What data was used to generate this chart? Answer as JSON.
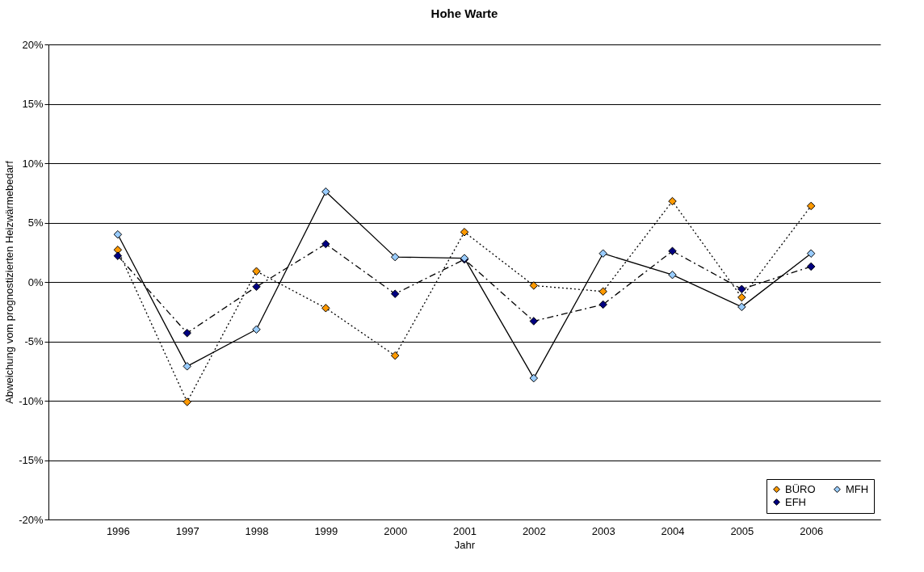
{
  "chart_data": {
    "type": "line",
    "title": "Hohe Warte",
    "xlabel": "Jahr",
    "ylabel": "Abweichung vom prognostizierten Heizwärmebedarf",
    "categories": [
      "1996",
      "1997",
      "1998",
      "1999",
      "2000",
      "2001",
      "2002",
      "2003",
      "2004",
      "2005",
      "2006"
    ],
    "series": [
      {
        "name": "BÜRO",
        "color": "#ff9900",
        "line_style": "dotted",
        "values": [
          2.7,
          -10.1,
          0.9,
          -2.2,
          -6.2,
          4.2,
          -0.3,
          -0.8,
          6.8,
          -1.3,
          6.4
        ]
      },
      {
        "name": "EFH",
        "color": "#000080",
        "line_style": "dashed",
        "values": [
          2.2,
          -4.3,
          -0.4,
          3.2,
          -1.0,
          1.9,
          -3.3,
          -1.9,
          2.6,
          -0.6,
          1.3
        ]
      },
      {
        "name": "MFH",
        "color": "#99ccff",
        "line_style": "solid",
        "values": [
          4.0,
          -7.1,
          -4.0,
          7.6,
          2.1,
          2.0,
          -8.1,
          2.4,
          0.6,
          -2.1,
          2.4
        ]
      }
    ],
    "ylim": [
      -20,
      20
    ],
    "yticks": [
      {
        "value": -20,
        "label": "-20%"
      },
      {
        "value": -15,
        "label": "-15%"
      },
      {
        "value": -10,
        "label": "-10%"
      },
      {
        "value": -5,
        "label": "-5%"
      },
      {
        "value": 0,
        "label": "0%"
      },
      {
        "value": 5,
        "label": "5%"
      },
      {
        "value": 10,
        "label": "10%"
      },
      {
        "value": 15,
        "label": "15%"
      },
      {
        "value": 20,
        "label": "20%"
      }
    ],
    "grid": "y",
    "legend": "bottom right",
    "marker": "diamond"
  }
}
